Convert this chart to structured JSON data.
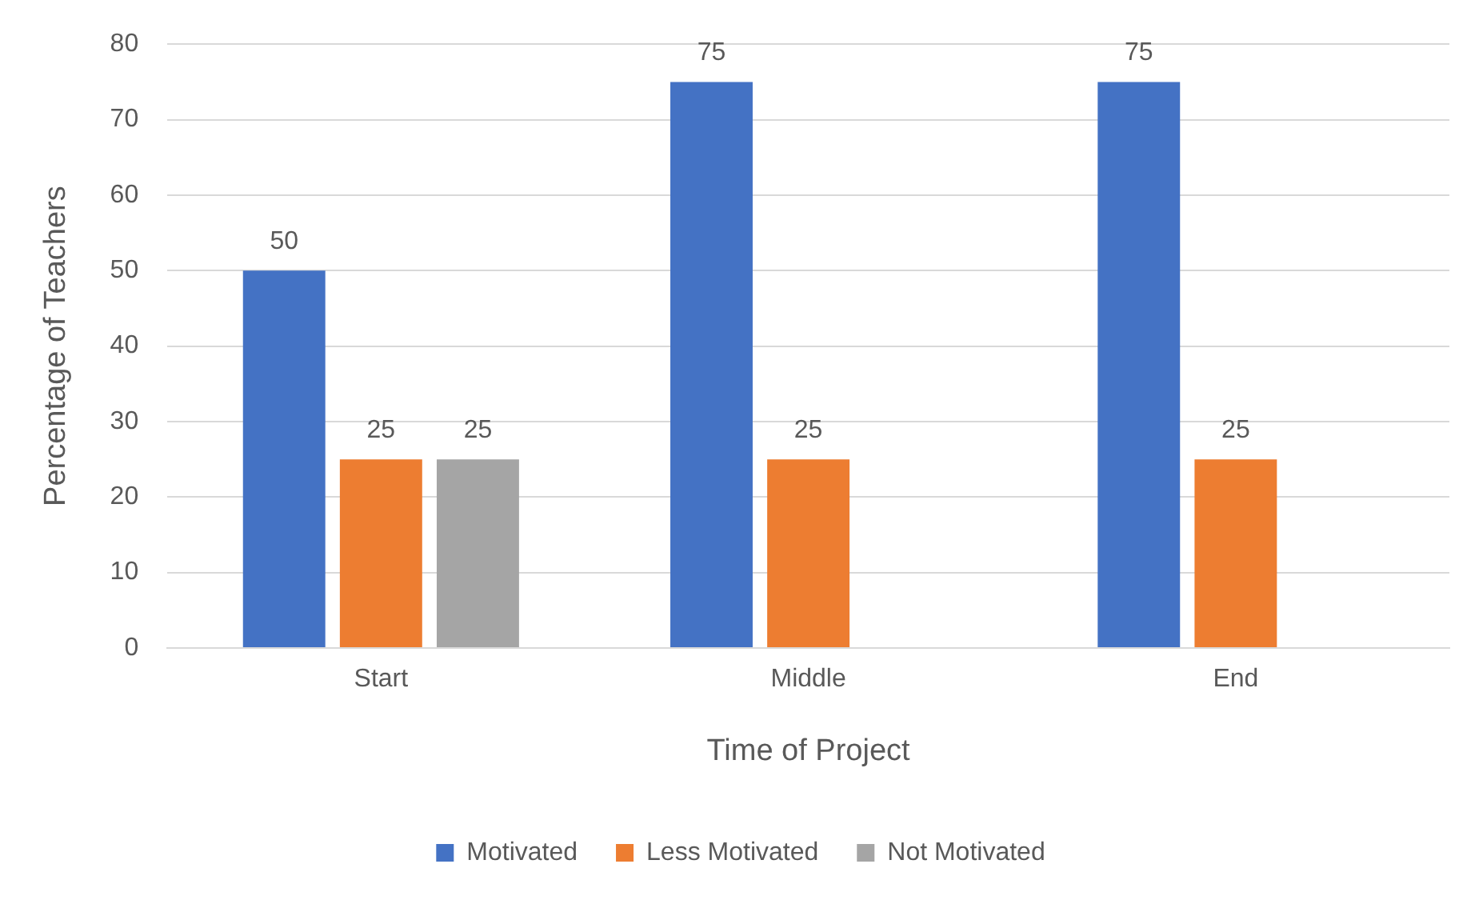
{
  "chart_data": {
    "type": "bar",
    "xlabel": "Time of Project",
    "ylabel": "Percentage of Teachers",
    "categories": [
      "Start",
      "Middle",
      "End"
    ],
    "series": [
      {
        "name": "Motivated",
        "color": "#4472c4",
        "values": [
          50,
          75,
          75
        ]
      },
      {
        "name": "Less Motivated",
        "color": "#ed7d31",
        "values": [
          25,
          25,
          25
        ]
      },
      {
        "name": "Not Motivated",
        "color": "#a5a5a5",
        "values": [
          25,
          null,
          null
        ]
      }
    ],
    "ylim": [
      0,
      80
    ],
    "yticks": [
      0,
      10,
      20,
      30,
      40,
      50,
      60,
      70,
      80
    ],
    "grid": "y",
    "legend": "bottom",
    "data_labels": true
  }
}
